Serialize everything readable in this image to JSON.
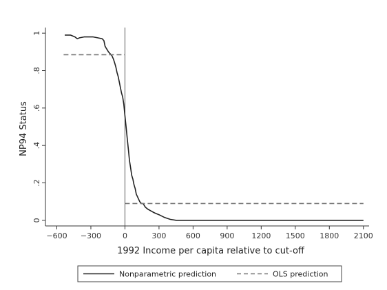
{
  "chart_data": {
    "type": "line",
    "title": "",
    "xlabel": "1992 Income per capita relative to cut-off",
    "ylabel": "NP94 Status",
    "xlim": [
      -700,
      2150
    ],
    "ylim": [
      -0.03,
      1.03
    ],
    "x_ticks": [
      -600,
      -300,
      0,
      300,
      600,
      900,
      1200,
      1500,
      1800,
      2100
    ],
    "x_tick_labels": [
      "−600",
      "−300",
      "0",
      "300",
      "600",
      "900",
      "1200",
      "1500",
      "1800",
      "2100"
    ],
    "y_ticks": [
      0,
      0.2,
      0.4,
      0.6,
      0.8,
      1
    ],
    "y_tick_labels": [
      "0",
      ".2",
      ".4",
      ".6",
      ".8",
      "1"
    ],
    "cutoff_line_x": 0,
    "grid": false,
    "legend_position": "bottom",
    "series": [
      {
        "name": "Nonparametric prediction",
        "style": "solid",
        "color": "#222222",
        "x": [
          -530,
          -480,
          -440,
          -420,
          -400,
          -360,
          -320,
          -280,
          -240,
          -200,
          -185,
          -175,
          -165,
          -155,
          -145,
          -130,
          -115,
          -100,
          -90,
          -80,
          -70,
          -60,
          -50,
          -40,
          -30,
          -20,
          -10,
          0,
          10,
          20,
          30,
          40,
          50,
          60,
          70,
          80,
          90,
          100,
          115,
          130,
          145,
          160,
          180,
          200,
          230,
          260,
          300,
          350,
          400,
          450,
          500,
          700,
          1000,
          1300,
          1600,
          1900,
          2100
        ],
        "y": [
          0.99,
          0.99,
          0.98,
          0.97,
          0.975,
          0.98,
          0.98,
          0.98,
          0.975,
          0.97,
          0.96,
          0.93,
          0.92,
          0.91,
          0.9,
          0.89,
          0.88,
          0.86,
          0.84,
          0.82,
          0.79,
          0.77,
          0.74,
          0.71,
          0.68,
          0.66,
          0.62,
          0.56,
          0.5,
          0.44,
          0.38,
          0.32,
          0.28,
          0.24,
          0.22,
          0.19,
          0.17,
          0.14,
          0.12,
          0.1,
          0.09,
          0.09,
          0.07,
          0.06,
          0.05,
          0.04,
          0.03,
          0.015,
          0.005,
          0.0,
          0.0,
          0.0,
          0.0,
          0.0,
          0.0,
          0.0,
          0.0
        ]
      },
      {
        "name": "OLS prediction",
        "style": "dashed",
        "color": "#777777",
        "segments": [
          {
            "x": [
              -540,
              0
            ],
            "y": [
              0.885,
              0.885
            ]
          },
          {
            "x": [
              0,
              2100
            ],
            "y": [
              0.09,
              0.09
            ]
          }
        ]
      }
    ]
  }
}
